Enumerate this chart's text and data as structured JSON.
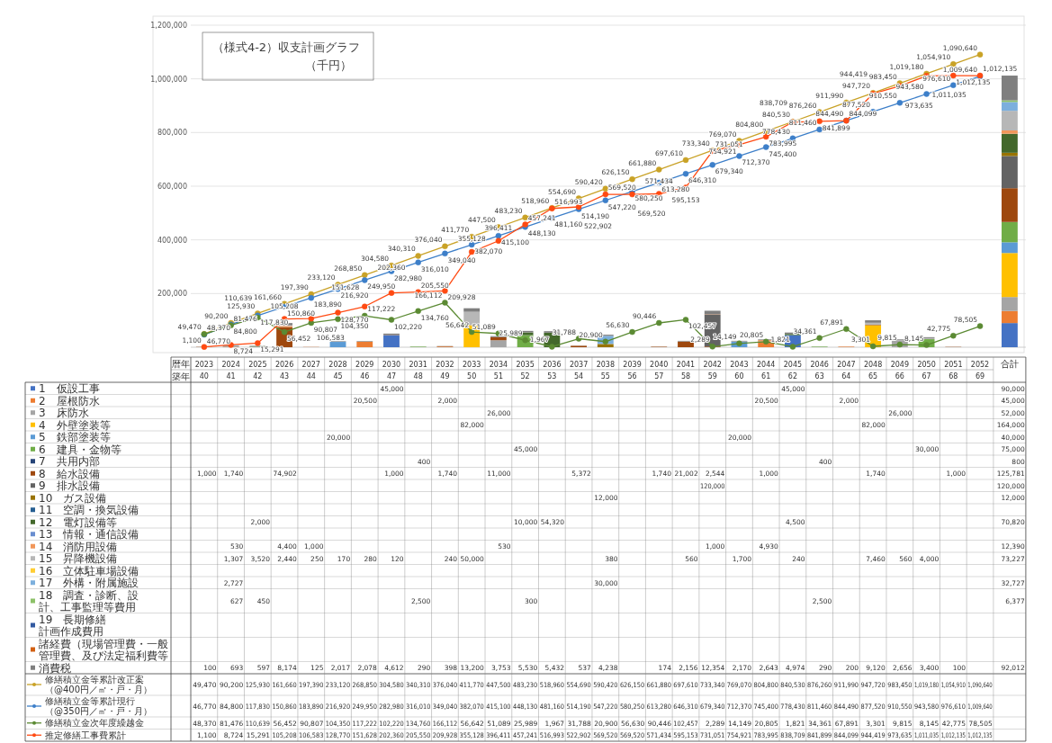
{
  "chart_data": {
    "type": "bar",
    "stacked": true,
    "title": "（様式4-2）収支計画グラフ",
    "subtitle": "（千円）",
    "categories": [
      "2023",
      "2024",
      "2025",
      "2026",
      "2027",
      "2028",
      "2029",
      "2030",
      "2031",
      "2032",
      "2033",
      "2034",
      "2035",
      "2036",
      "2037",
      "2038",
      "2039",
      "2040",
      "2041",
      "2042",
      "2043",
      "2044",
      "2045",
      "2046",
      "2047",
      "2048",
      "2049",
      "2050",
      "2051",
      "2052",
      "合計"
    ],
    "annotations": [
      "暦年",
      "築年",
      "40",
      "41",
      "42",
      "43",
      "44",
      "45",
      "46",
      "47",
      "48",
      "49",
      "50",
      "51",
      "52",
      "53",
      "54",
      "55",
      "56",
      "57",
      "58",
      "59",
      "60",
      "61",
      "62",
      "63",
      "64",
      "65",
      "66",
      "67",
      "68",
      "69"
    ],
    "ylim": [
      0,
      1200000
    ],
    "yticks": [
      {
        "value": 200000,
        "label": "200,000"
      },
      {
        "value": 400000,
        "label": "400,000"
      },
      {
        "value": 600000,
        "label": "600,000"
      },
      {
        "value": 800000,
        "label": "800,000"
      },
      {
        "value": 1000000,
        "label": "1,000,000"
      },
      {
        "value": 1200000,
        "label": "1,200,000"
      }
    ],
    "grid": "y",
    "marker": "circle",
    "legend": "bottom",
    "series": [
      {
        "name": "1　仮設工事",
        "color": "#4472c4",
        "values": [
          null,
          null,
          null,
          null,
          null,
          null,
          null,
          45000,
          null,
          null,
          null,
          null,
          null,
          null,
          null,
          null,
          null,
          null,
          null,
          null,
          null,
          null,
          45000,
          null,
          null,
          null,
          null,
          null,
          null,
          null,
          90000
        ],
        "value_labels": [
          null,
          null,
          null,
          null,
          null,
          null,
          null,
          "45,000",
          null,
          null,
          null,
          null,
          null,
          null,
          null,
          null,
          null,
          null,
          null,
          null,
          null,
          null,
          "45,000",
          null,
          null,
          null,
          null,
          null,
          null,
          null,
          "90,000"
        ]
      },
      {
        "name": "2　屋根防水",
        "color": "#ed7d31",
        "values": [
          null,
          null,
          null,
          null,
          null,
          null,
          20500,
          null,
          null,
          2000,
          null,
          null,
          null,
          null,
          null,
          null,
          null,
          null,
          null,
          null,
          null,
          20500,
          null,
          null,
          2000,
          null,
          null,
          null,
          null,
          null,
          45000
        ],
        "value_labels": [
          null,
          null,
          null,
          null,
          null,
          null,
          "20,500",
          null,
          null,
          "2,000",
          null,
          null,
          null,
          null,
          null,
          null,
          null,
          null,
          null,
          null,
          null,
          "20,500",
          null,
          null,
          "2,000",
          null,
          null,
          null,
          null,
          null,
          "45,000"
        ]
      },
      {
        "name": "3　床防水",
        "color": "#a5a5a5",
        "values": [
          null,
          null,
          null,
          null,
          null,
          null,
          null,
          null,
          null,
          null,
          null,
          26000,
          null,
          null,
          null,
          null,
          null,
          null,
          null,
          null,
          null,
          null,
          null,
          null,
          null,
          null,
          26000,
          null,
          null,
          null,
          52000
        ],
        "value_labels": [
          null,
          null,
          null,
          null,
          null,
          null,
          null,
          null,
          null,
          null,
          null,
          "26,000",
          null,
          null,
          null,
          null,
          null,
          null,
          null,
          null,
          null,
          null,
          null,
          null,
          null,
          null,
          "26,000",
          null,
          null,
          null,
          "52,000"
        ]
      },
      {
        "name": "4　外壁塗装等",
        "color": "#ffc000",
        "values": [
          null,
          null,
          null,
          null,
          null,
          null,
          null,
          null,
          null,
          null,
          82000,
          null,
          null,
          null,
          null,
          null,
          null,
          null,
          null,
          null,
          null,
          null,
          null,
          null,
          null,
          82000,
          null,
          null,
          null,
          null,
          164000
        ],
        "value_labels": [
          null,
          null,
          null,
          null,
          null,
          null,
          null,
          null,
          null,
          null,
          "82,000",
          null,
          null,
          null,
          null,
          null,
          null,
          null,
          null,
          null,
          null,
          null,
          null,
          null,
          null,
          "82,000",
          null,
          null,
          null,
          null,
          "164,000"
        ]
      },
      {
        "name": "5　鉄部塗装等",
        "color": "#5b9bd5",
        "values": [
          null,
          null,
          null,
          null,
          null,
          20000,
          null,
          null,
          null,
          null,
          null,
          null,
          null,
          null,
          null,
          null,
          null,
          null,
          null,
          null,
          20000,
          null,
          null,
          null,
          null,
          null,
          null,
          null,
          null,
          null,
          40000
        ],
        "value_labels": [
          null,
          null,
          null,
          null,
          null,
          "20,000",
          null,
          null,
          null,
          null,
          null,
          null,
          null,
          null,
          null,
          null,
          null,
          null,
          null,
          null,
          "20,000",
          null,
          null,
          null,
          null,
          null,
          null,
          null,
          null,
          null,
          "40,000"
        ]
      },
      {
        "name": "6　建具・金物等",
        "color": "#70ad47",
        "values": [
          null,
          null,
          null,
          null,
          null,
          null,
          null,
          null,
          null,
          null,
          null,
          null,
          45000,
          null,
          null,
          null,
          null,
          null,
          null,
          null,
          null,
          null,
          null,
          null,
          null,
          null,
          null,
          30000,
          null,
          null,
          75000
        ],
        "value_labels": [
          null,
          null,
          null,
          null,
          null,
          null,
          null,
          null,
          null,
          null,
          null,
          null,
          "45,000",
          null,
          null,
          null,
          null,
          null,
          null,
          null,
          null,
          null,
          null,
          null,
          null,
          null,
          null,
          "30,000",
          null,
          null,
          "75,000"
        ]
      },
      {
        "name": "7　共用内部",
        "color": "#264478",
        "values": [
          null,
          null,
          null,
          null,
          null,
          null,
          null,
          null,
          400,
          null,
          null,
          null,
          null,
          null,
          null,
          null,
          null,
          null,
          null,
          null,
          null,
          null,
          null,
          400,
          null,
          null,
          null,
          null,
          null,
          null,
          800
        ],
        "value_labels": [
          null,
          null,
          null,
          null,
          null,
          null,
          null,
          null,
          "400",
          null,
          null,
          null,
          null,
          null,
          null,
          null,
          null,
          null,
          null,
          null,
          null,
          null,
          null,
          "400",
          null,
          null,
          null,
          null,
          null,
          null,
          "800"
        ]
      },
      {
        "name": "8　給水設備",
        "color": "#9e480e",
        "values": [
          1000,
          1740,
          null,
          74902,
          null,
          null,
          null,
          1000,
          null,
          1740,
          null,
          11000,
          null,
          null,
          5372,
          null,
          null,
          1740,
          21002,
          2544,
          null,
          1000,
          null,
          null,
          null,
          1740,
          null,
          null,
          1000,
          null,
          125781
        ],
        "value_labels": [
          "1,000",
          "1,740",
          null,
          "74,902",
          null,
          null,
          null,
          "1,000",
          null,
          "1,740",
          null,
          "11,000",
          null,
          null,
          "5,372",
          null,
          null,
          "1,740",
          "21,002",
          "2,544",
          null,
          "1,000",
          null,
          null,
          null,
          "1,740",
          null,
          null,
          "1,000",
          null,
          "125,781"
        ]
      },
      {
        "name": "9　排水設備",
        "color": "#636363",
        "values": [
          null,
          null,
          null,
          null,
          null,
          null,
          null,
          null,
          null,
          null,
          null,
          null,
          null,
          null,
          null,
          null,
          null,
          null,
          null,
          120000,
          null,
          null,
          null,
          null,
          null,
          null,
          null,
          null,
          null,
          null,
          120000
        ],
        "value_labels": [
          null,
          null,
          null,
          null,
          null,
          null,
          null,
          null,
          null,
          null,
          null,
          null,
          null,
          null,
          null,
          null,
          null,
          null,
          null,
          "120,000",
          null,
          null,
          null,
          null,
          null,
          null,
          null,
          null,
          null,
          null,
          "120,000"
        ]
      },
      {
        "name": "10　ガス設備",
        "color": "#997300",
        "values": [
          null,
          null,
          null,
          null,
          null,
          null,
          null,
          null,
          null,
          null,
          null,
          null,
          null,
          null,
          null,
          12000,
          null,
          null,
          null,
          null,
          null,
          null,
          null,
          null,
          null,
          null,
          null,
          null,
          null,
          null,
          12000
        ],
        "value_labels": [
          null,
          null,
          null,
          null,
          null,
          null,
          null,
          null,
          null,
          null,
          null,
          null,
          null,
          null,
          null,
          "12,000",
          null,
          null,
          null,
          null,
          null,
          null,
          null,
          null,
          null,
          null,
          null,
          null,
          null,
          null,
          "12,000"
        ]
      },
      {
        "name": "11　空調・換気設備",
        "color": "#255e91",
        "values": [
          null,
          null,
          null,
          null,
          null,
          null,
          null,
          null,
          null,
          null,
          null,
          null,
          null,
          null,
          null,
          null,
          null,
          null,
          null,
          null,
          null,
          null,
          null,
          null,
          null,
          null,
          null,
          null,
          null,
          null,
          null
        ]
      },
      {
        "name": "12　電灯設備等",
        "color": "#43682b",
        "values": [
          null,
          null,
          2000,
          null,
          null,
          null,
          null,
          null,
          null,
          null,
          null,
          null,
          10000,
          54320,
          null,
          null,
          null,
          null,
          null,
          null,
          null,
          null,
          4500,
          null,
          null,
          null,
          null,
          null,
          null,
          null,
          70820
        ],
        "value_labels": [
          null,
          null,
          "2,000",
          null,
          null,
          null,
          null,
          null,
          null,
          null,
          null,
          null,
          "10,000",
          "54,320",
          null,
          null,
          null,
          null,
          null,
          null,
          null,
          null,
          "4,500",
          null,
          null,
          null,
          null,
          null,
          null,
          null,
          "70,820"
        ]
      },
      {
        "name": "13　情報・通信設備",
        "color": "#698ed0",
        "values": [
          null,
          null,
          null,
          null,
          null,
          null,
          null,
          null,
          null,
          null,
          null,
          null,
          null,
          null,
          null,
          null,
          null,
          null,
          null,
          null,
          null,
          null,
          null,
          null,
          null,
          null,
          null,
          null,
          null,
          null,
          null
        ]
      },
      {
        "name": "14　消防用設備",
        "color": "#f1975a",
        "values": [
          null,
          530,
          null,
          4400,
          1000,
          null,
          null,
          null,
          null,
          null,
          null,
          530,
          null,
          null,
          null,
          null,
          null,
          null,
          null,
          1000,
          null,
          4930,
          null,
          null,
          null,
          null,
          null,
          null,
          null,
          null,
          12390
        ],
        "value_labels": [
          null,
          "530",
          null,
          "4,400",
          "1,000",
          null,
          null,
          null,
          null,
          null,
          null,
          "530",
          null,
          null,
          null,
          null,
          null,
          null,
          null,
          "1,000",
          null,
          "4,930",
          null,
          null,
          null,
          null,
          null,
          null,
          null,
          null,
          "12,390"
        ]
      },
      {
        "name": "15　昇降機設備",
        "color": "#b7b7b7",
        "values": [
          null,
          1307,
          3520,
          2440,
          250,
          170,
          280,
          120,
          null,
          240,
          50000,
          null,
          null,
          null,
          null,
          380,
          null,
          null,
          560,
          null,
          1700,
          null,
          240,
          null,
          null,
          7460,
          560,
          4000,
          null,
          null,
          73227
        ],
        "value_labels": [
          null,
          "1,307",
          "3,520",
          "2,440",
          "250",
          "170",
          "280",
          "120",
          null,
          "240",
          "50,000",
          null,
          null,
          null,
          null,
          "380",
          null,
          null,
          "560",
          null,
          "1,700",
          null,
          "240",
          null,
          null,
          "7,460",
          "560",
          "4,000",
          null,
          null,
          "73,227"
        ]
      },
      {
        "name": "16　立体駐車場設備",
        "color": "#ffcd33",
        "values": [
          null,
          null,
          null,
          null,
          null,
          null,
          null,
          null,
          null,
          null,
          null,
          null,
          null,
          null,
          null,
          null,
          null,
          null,
          null,
          null,
          null,
          null,
          null,
          null,
          null,
          null,
          null,
          null,
          null,
          null,
          null
        ]
      },
      {
        "name": "17　外構・附属施設",
        "color": "#7cafdd",
        "values": [
          null,
          2727,
          null,
          null,
          null,
          null,
          null,
          null,
          null,
          null,
          null,
          null,
          null,
          null,
          null,
          30000,
          null,
          null,
          null,
          null,
          null,
          null,
          null,
          null,
          null,
          null,
          null,
          null,
          null,
          null,
          32727
        ],
        "value_labels": [
          null,
          "2,727",
          null,
          null,
          null,
          null,
          null,
          null,
          null,
          null,
          null,
          null,
          null,
          null,
          null,
          "30,000",
          null,
          null,
          null,
          null,
          null,
          null,
          null,
          null,
          null,
          null,
          null,
          null,
          null,
          null,
          "32,727"
        ]
      },
      {
        "name": "18　調査・診断、設計、工事監理等費用",
        "color": "#8cc168",
        "values": [
          null,
          627,
          450,
          null,
          null,
          null,
          null,
          null,
          2500,
          null,
          null,
          null,
          300,
          null,
          null,
          null,
          null,
          null,
          null,
          null,
          null,
          null,
          null,
          2500,
          null,
          null,
          null,
          null,
          null,
          null,
          6377
        ],
        "value_labels": [
          null,
          "627",
          "450",
          null,
          null,
          null,
          null,
          null,
          "2,500",
          null,
          null,
          null,
          "300",
          null,
          null,
          null,
          null,
          null,
          null,
          null,
          null,
          null,
          null,
          "2,500",
          null,
          null,
          null,
          null,
          null,
          null,
          "6,377"
        ]
      },
      {
        "name": "19　長期修繕計画作成費用",
        "color": "#335aa1",
        "values": [
          null,
          null,
          null,
          null,
          null,
          null,
          null,
          null,
          null,
          null,
          null,
          null,
          null,
          null,
          null,
          null,
          null,
          null,
          null,
          null,
          null,
          null,
          null,
          null,
          null,
          null,
          null,
          null,
          null,
          null,
          null
        ]
      },
      {
        "name": "諸経費（現場管理費・一般管理費、及び法定福利費等",
        "color": "#d26012",
        "values": [
          null,
          null,
          null,
          null,
          null,
          null,
          null,
          null,
          null,
          null,
          null,
          null,
          null,
          null,
          null,
          null,
          null,
          null,
          null,
          null,
          null,
          null,
          null,
          null,
          null,
          null,
          null,
          null,
          null,
          null,
          null
        ]
      },
      {
        "name": "消費税",
        "color": "#7f7f7f",
        "values": [
          100,
          693,
          597,
          8174,
          125,
          2017,
          2078,
          4612,
          290,
          398,
          13200,
          3753,
          5530,
          5432,
          537,
          4238,
          null,
          174,
          2156,
          12354,
          2170,
          2643,
          4974,
          290,
          200,
          9120,
          2656,
          3400,
          100,
          null,
          92012
        ],
        "value_labels": [
          "100",
          "693",
          "597",
          "8,174",
          "125",
          "2,017",
          "2,078",
          "4,612",
          "290",
          "398",
          "13,200",
          "3,753",
          "5,530",
          "5,432",
          "537",
          "4,238",
          null,
          "174",
          "2,156",
          "12,354",
          "2,170",
          "2,643",
          "4,974",
          "290",
          "200",
          "9,120",
          "2,656",
          "3,400",
          "100",
          null,
          "92,012"
        ]
      },
      {
        "type": "line",
        "name": "修繕積立金等累計改正案（@400円／㎡・戸・月）",
        "color": "#c9a227",
        "values": [
          49470,
          90200,
          125930,
          161660,
          197390,
          233120,
          268850,
          304580,
          340310,
          376040,
          411770,
          447500,
          483230,
          518960,
          554690,
          590420,
          626150,
          661880,
          697610,
          733340,
          769070,
          804800,
          840530,
          876260,
          911990,
          947720,
          983450,
          1019180,
          1054910,
          1090640,
          null
        ],
        "value_labels": [
          "49,470",
          "90,200",
          "125,930",
          "161,660",
          "197,390",
          "233,120",
          "268,850",
          "304,580",
          "340,310",
          "376,040",
          "411,770",
          "447,500",
          "483,230",
          "518,960",
          "554,690",
          "590,420",
          "626,150",
          "661,880",
          "697,610",
          "733,340",
          "769,070",
          "804,800",
          "840,530",
          "876,260",
          "911,990",
          "947,720",
          "983,450",
          "1,019,180",
          "1,054,910",
          "1,090,640",
          null
        ]
      },
      {
        "type": "line",
        "name": "修繕積立金等累計現行（@350円／㎡・戸・月）",
        "color": "#3d7fc9",
        "values": [
          46770,
          84800,
          117830,
          150860,
          183890,
          216920,
          249950,
          282980,
          316010,
          349040,
          382070,
          415100,
          448130,
          481160,
          514190,
          547220,
          580250,
          613280,
          646310,
          679340,
          712370,
          745400,
          778430,
          811460,
          844490,
          877520,
          910550,
          943580,
          976610,
          1009640,
          null
        ],
        "value_labels": [
          "46,770",
          "84,800",
          "117,830",
          "150,860",
          "183,890",
          "216,920",
          "249,950",
          "282,980",
          "316,010",
          "349,040",
          "382,070",
          "415,100",
          "448,130",
          "481,160",
          "514,190",
          "547,220",
          "580,250",
          "613,280",
          "646,310",
          "679,340",
          "712,370",
          "745,400",
          "778,430",
          "811,460",
          "844,490",
          "877,520",
          "910,550",
          "943,580",
          "976,610",
          "1,009,640",
          null
        ]
      },
      {
        "type": "line",
        "name": "修繕積立金次年度繰越金",
        "color": "#5b8a33",
        "values": [
          48370,
          81476,
          110639,
          56452,
          90807,
          104350,
          117222,
          102220,
          134760,
          166112,
          56642,
          51089,
          25989,
          1967,
          31788,
          20900,
          56630,
          90446,
          102457,
          2289,
          14149,
          20805,
          1821,
          34361,
          67891,
          3301,
          9815,
          8145,
          42775,
          78505,
          null
        ],
        "value_labels": [
          "48,370",
          "81,476",
          "110,639",
          "56,452",
          "90,807",
          "104,350",
          "117,222",
          "102,220",
          "134,760",
          "166,112",
          "56,642",
          "51,089",
          "25,989",
          "1,967",
          "31,788",
          "20,900",
          "56,630",
          "90,446",
          "102,457",
          "2,289",
          "14,149",
          "20,805",
          "1,821",
          "34,361",
          "67,891",
          "3,301",
          "9,815",
          "8,145",
          "42,775",
          "78,505",
          null
        ]
      },
      {
        "type": "line",
        "name": "推定修繕工事費累計",
        "color": "#ff4a12",
        "values": [
          1100,
          8724,
          15291,
          105208,
          106583,
          128770,
          151628,
          202360,
          205550,
          209928,
          355128,
          396411,
          457241,
          516993,
          522902,
          569520,
          569520,
          571434,
          595153,
          731051,
          754921,
          783995,
          838709,
          841899,
          844099,
          944419,
          973635,
          1011035,
          1012135,
          1012135,
          null
        ],
        "value_labels": [
          "1,100",
          "8,724",
          "15,291",
          "105,208",
          "106,583",
          "128,770",
          "151,628",
          "202,360",
          "205,550",
          "209,928",
          "355,128",
          "396,411",
          "457,241",
          "516,993",
          "522,902",
          "569,520",
          "569,520",
          "571,434",
          "595,153",
          "731,051",
          "754,921",
          "783,995",
          "838,709",
          "841,899",
          "844,099",
          "944,419",
          "973,635",
          "1,011,035",
          "1,012,135",
          "1,012,135",
          null
        ]
      }
    ]
  }
}
